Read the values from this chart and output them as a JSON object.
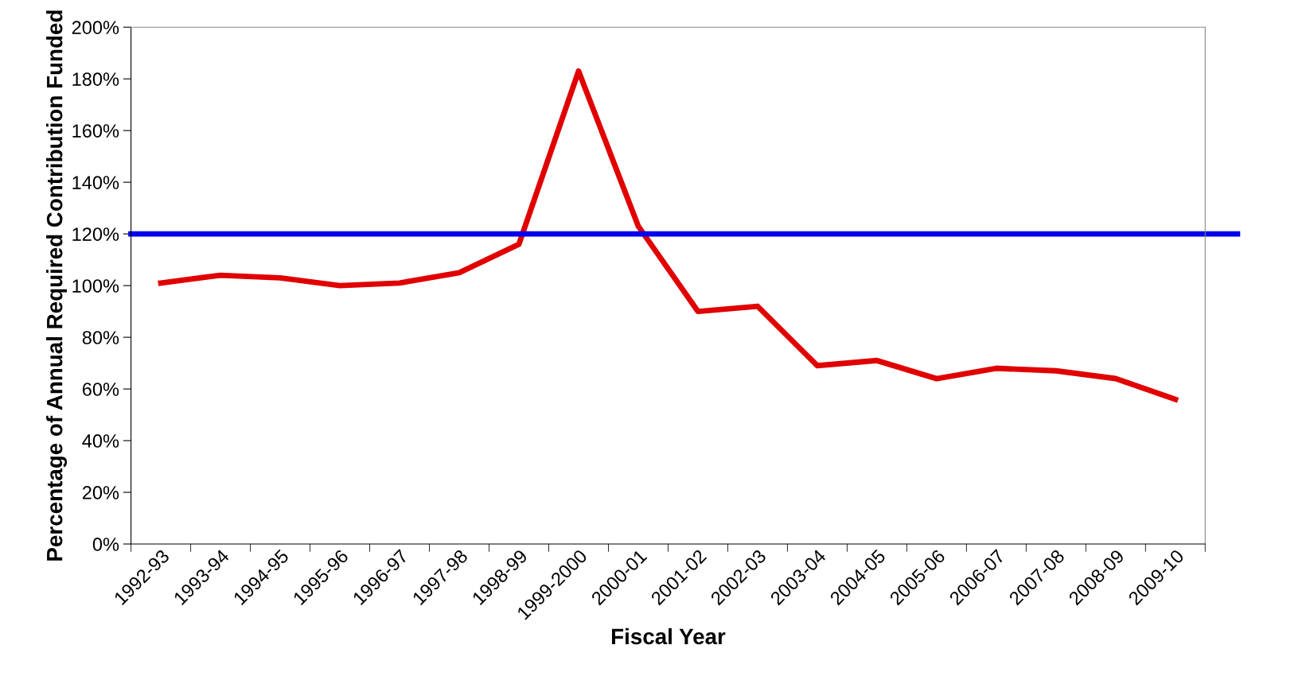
{
  "chart_data": {
    "type": "line",
    "xlabel": "Fiscal Year",
    "ylabel": "Percentage of Annual Required Contribution Funded",
    "categories": [
      "1992-93",
      "1993-94",
      "1994-95",
      "1995-96",
      "1996-97",
      "1997-98",
      "1998-99",
      "1999-2000",
      "2000-01",
      "2001-02",
      "2002-03",
      "2003-04",
      "2004-05",
      "2005-06",
      "2006-07",
      "2007-08",
      "2008-09",
      "2009-10"
    ],
    "series": [
      {
        "color": "#e00000",
        "values": [
          101,
          104,
          103,
          100,
          101,
          105,
          116,
          183,
          123,
          90,
          92,
          69,
          71,
          64,
          68,
          67,
          64,
          56
        ]
      }
    ],
    "ylim": [
      0,
      200
    ],
    "yticks": [
      {
        "value": 0,
        "label": "0%"
      },
      {
        "value": 20,
        "label": "20%"
      },
      {
        "value": 40,
        "label": "40%"
      },
      {
        "value": 60,
        "label": "60%"
      },
      {
        "value": 80,
        "label": "80%"
      },
      {
        "value": 100,
        "label": "100%"
      },
      {
        "value": 120,
        "label": "120%"
      },
      {
        "value": 140,
        "label": "140%"
      },
      {
        "value": 160,
        "label": "160%"
      },
      {
        "value": 180,
        "label": "180%"
      },
      {
        "value": 200,
        "label": "200%"
      }
    ],
    "ref_lines": [
      {
        "axis": "y",
        "value": 120,
        "color": "#0000ee"
      }
    ],
    "grid": false,
    "legend": false,
    "marker": "none",
    "line_style": "solid"
  }
}
